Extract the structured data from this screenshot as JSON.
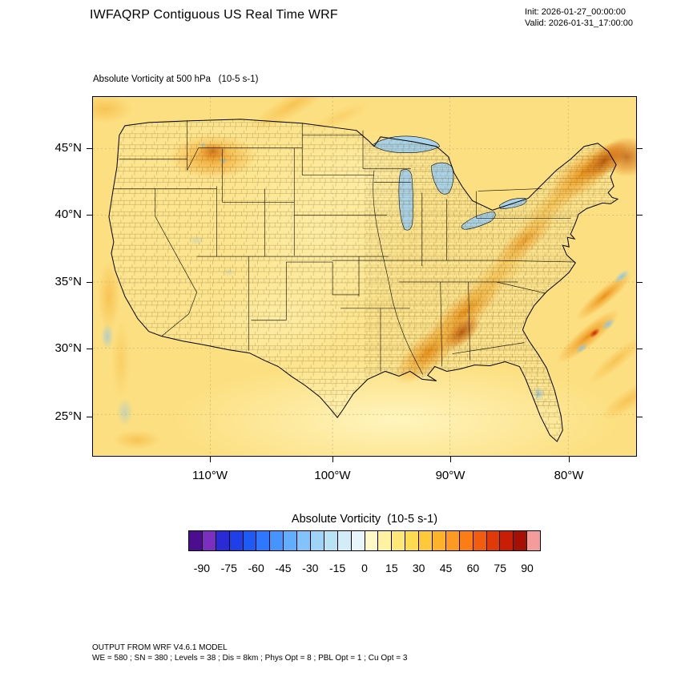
{
  "header": {
    "title": "IWFAQRP Contiguous US Real Time WRF",
    "init_label": "Init: 2026-01-27_00:00:00",
    "valid_label": "Valid: 2026-01-31_17:00:00"
  },
  "map": {
    "subtitle": "Absolute Vorticity at 500 hPa   (10-5 s-1)",
    "y_ticks": [
      "45°N",
      "40°N",
      "35°N",
      "30°N",
      "25°N"
    ],
    "x_ticks": [
      "110°W",
      "100°W",
      "90°W",
      "80°W"
    ]
  },
  "colorbar": {
    "title": "Absolute Vorticity  (10-5 s-1)",
    "tick_labels": [
      "-90",
      "-75",
      "-60",
      "-45",
      "-30",
      "-15",
      "0",
      "15",
      "30",
      "45",
      "60",
      "75",
      "90"
    ],
    "colors": [
      "#4c0e8f",
      "#7b2fbe",
      "#2b2bd5",
      "#1f3fe8",
      "#1e5bf5",
      "#2d78ff",
      "#4694ff",
      "#63adff",
      "#82c3fb",
      "#9fd4f7",
      "#bae2f5",
      "#d2edf8",
      "#e8f5fa",
      "#fff9c8",
      "#fff2a0",
      "#ffe878",
      "#ffdb52",
      "#ffc938",
      "#ffb32a",
      "#ff9a20",
      "#fb7d14",
      "#f25c0e",
      "#e03a08",
      "#c81e05",
      "#a50f04",
      "#f49c9c"
    ]
  },
  "footer": {
    "line1": "OUTPUT FROM WRF V4.6.1 MODEL",
    "line2": "WE = 580 ; SN = 380 ; Levels = 38 ; Dis = 8km ; Phys Opt = 8 ; PBL Opt = 1 ; Cu Opt = 3"
  },
  "chart_data": {
    "type": "heatmap",
    "title": "Absolute Vorticity at 500 hPa (10-5 s-1)",
    "variable": "Absolute Vorticity",
    "units": "10-5 s-1",
    "level": "500 hPa",
    "model_init": "2026-01-27_00:00:00",
    "model_valid": "2026-01-31_17:00:00",
    "x_axis": {
      "label": "longitude",
      "tick_values_degW": [
        110,
        100,
        90,
        80
      ]
    },
    "y_axis": {
      "label": "latitude",
      "tick_values_degN": [
        45,
        40,
        35,
        30,
        25
      ]
    },
    "colorbar_scale": {
      "min": -97.5,
      "max": 97.5,
      "interval": 7.5,
      "tick_values": [
        -90,
        -75,
        -60,
        -45,
        -30,
        -15,
        0,
        15,
        30,
        45,
        60,
        75,
        90
      ],
      "palette_note": "26 discrete fills, purple-blue for negative, yellow-orange-red for positive, pink for >90; listed in colorbar.colors"
    },
    "field_features": [
      {
        "region": "background over most of CONUS and oceans",
        "value_approx": 10
      },
      {
        "region": "Montana / Idaho maximum",
        "value_approx": 35
      },
      {
        "region": "SW-NE ridge from Mississippi-Alabama through Tennessee/Appalachians",
        "value_approx": 35
      },
      {
        "region": "dark core over Alabama/Georgia",
        "value_approx": 50
      },
      {
        "region": "New England / Northeast corner maximum",
        "value_approx": 60
      },
      {
        "region": "western Atlantic diagonal streaks with small +/- couplets (red ~75, blue ~-20)",
        "value_approx": 40
      },
      {
        "region": "Gulf of Mexico and southern margin (pale)",
        "value_approx": 4
      },
      {
        "region": "scattered weak negative (light blue) specks: Pacific near coast, central Florida, Great Lakes water",
        "value_approx": -10
      }
    ]
  }
}
